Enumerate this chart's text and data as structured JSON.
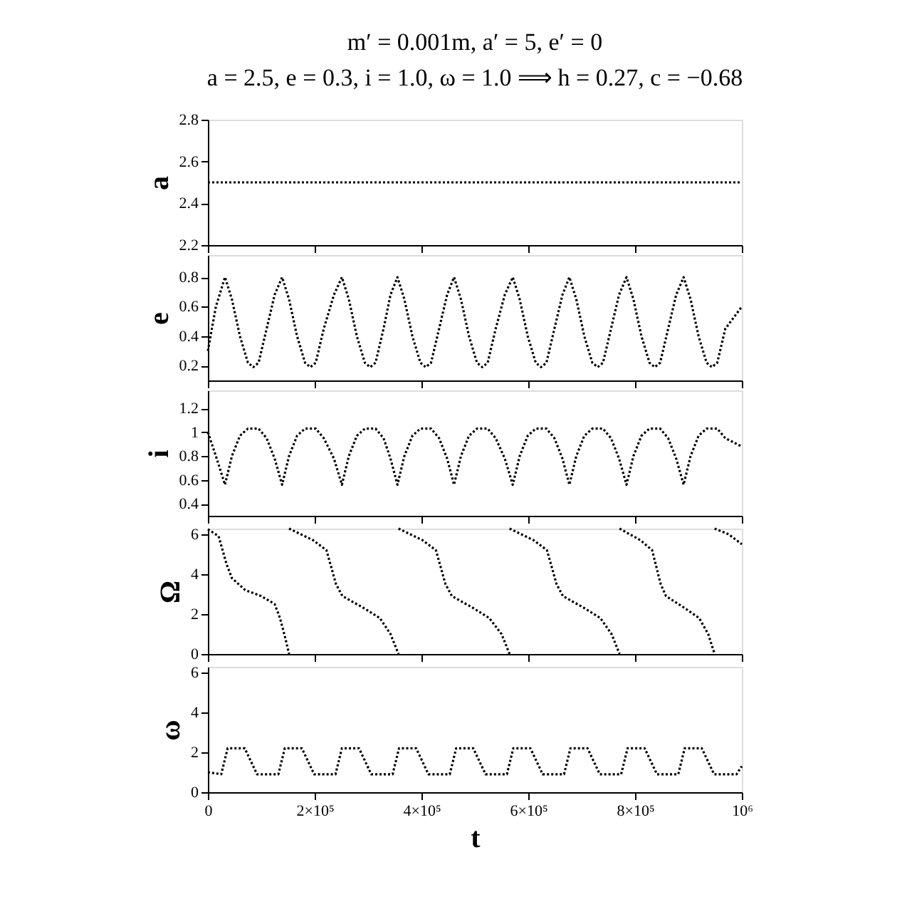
{
  "chart_data": [
    {
      "type": "line",
      "title": "m′ = 0.001m, a′ = 5, e′ = 0",
      "subtitle": "a = 2.5, e = 0.3, i = 1.0, ω = 1.0 ⟹ h = 0.27, c = −0.68",
      "ylabel": "a",
      "tick_labels": "y",
      "xlim": [
        0,
        1000000
      ],
      "xticks": [
        0,
        200000,
        400000,
        600000,
        800000,
        1000000
      ],
      "ylim": [
        2.2,
        2.8
      ],
      "yticks": [
        2.2,
        2.4,
        2.6,
        2.8
      ],
      "x": [
        0,
        1000000
      ],
      "line_style": "dotted",
      "series": [
        {
          "color": "#000000",
          "values": [
            2.5,
            2.5
          ]
        }
      ]
    },
    {
      "type": "line",
      "ylabel": "e",
      "tick_labels": "y",
      "xlim": [
        0,
        1000000
      ],
      "xticks": [
        0,
        200000,
        400000,
        600000,
        800000,
        1000000
      ],
      "ylim": [
        0.1,
        0.95
      ],
      "yticks": [
        0.2,
        0.4,
        0.6,
        0.8
      ],
      "line_style": "dotted",
      "x": [
        0,
        15000,
        32000,
        45000,
        60000,
        75000,
        85000,
        95000,
        110000,
        125000,
        139000,
        152000,
        167000,
        182000,
        192000,
        202000,
        217000,
        236000,
        251000,
        264000,
        279000,
        294000,
        304000,
        314000,
        329000,
        342000,
        355000,
        368000,
        383000,
        398000,
        408000,
        418000,
        433000,
        448000,
        461000,
        474000,
        489000,
        504000,
        514000,
        524000,
        539000,
        556000,
        571000,
        584000,
        599000,
        614000,
        624000,
        634000,
        649000,
        664000,
        677000,
        690000,
        705000,
        720000,
        730000,
        740000,
        755000,
        770000,
        784000,
        797000,
        812000,
        827000,
        837000,
        847000,
        862000,
        877000,
        891000,
        904000,
        919000,
        934000,
        944000,
        954000,
        969000,
        1000000
      ],
      "series": [
        {
          "color": "#000000",
          "values": [
            0.3,
            0.6,
            0.8,
            0.65,
            0.4,
            0.22,
            0.19,
            0.22,
            0.45,
            0.68,
            0.8,
            0.65,
            0.4,
            0.22,
            0.19,
            0.22,
            0.45,
            0.68,
            0.8,
            0.65,
            0.4,
            0.22,
            0.19,
            0.22,
            0.45,
            0.68,
            0.8,
            0.65,
            0.4,
            0.22,
            0.19,
            0.22,
            0.45,
            0.68,
            0.8,
            0.65,
            0.4,
            0.22,
            0.19,
            0.22,
            0.45,
            0.68,
            0.8,
            0.65,
            0.4,
            0.22,
            0.19,
            0.22,
            0.45,
            0.68,
            0.8,
            0.65,
            0.4,
            0.22,
            0.19,
            0.22,
            0.45,
            0.68,
            0.8,
            0.65,
            0.4,
            0.22,
            0.19,
            0.22,
            0.45,
            0.68,
            0.8,
            0.65,
            0.4,
            0.22,
            0.19,
            0.22,
            0.45,
            0.6
          ]
        }
      ]
    },
    {
      "type": "line",
      "ylabel": "i",
      "tick_labels": "y",
      "xlim": [
        0,
        1000000
      ],
      "xticks": [
        0,
        200000,
        400000,
        600000,
        800000,
        1000000
      ],
      "ylim": [
        0.3,
        1.35
      ],
      "yticks": [
        0.4,
        0.6,
        0.8,
        1,
        1.2
      ],
      "line_style": "dotted",
      "x": [
        0,
        15000,
        32000,
        45000,
        60000,
        75000,
        85000,
        95000,
        110000,
        125000,
        139000,
        152000,
        167000,
        182000,
        192000,
        202000,
        217000,
        236000,
        251000,
        264000,
        279000,
        294000,
        304000,
        314000,
        329000,
        342000,
        355000,
        368000,
        383000,
        398000,
        408000,
        418000,
        433000,
        448000,
        461000,
        474000,
        489000,
        504000,
        514000,
        524000,
        539000,
        556000,
        571000,
        584000,
        599000,
        614000,
        624000,
        634000,
        649000,
        664000,
        677000,
        690000,
        705000,
        720000,
        730000,
        740000,
        755000,
        770000,
        784000,
        797000,
        812000,
        827000,
        837000,
        847000,
        862000,
        877000,
        891000,
        904000,
        919000,
        934000,
        944000,
        954000,
        969000,
        1000000
      ],
      "series": [
        {
          "color": "#000000",
          "values": [
            1.0,
            0.8,
            0.56,
            0.8,
            0.97,
            1.03,
            1.03,
            1.03,
            0.95,
            0.78,
            0.56,
            0.8,
            0.97,
            1.03,
            1.03,
            1.03,
            0.95,
            0.78,
            0.56,
            0.8,
            0.97,
            1.03,
            1.03,
            1.03,
            0.95,
            0.78,
            0.56,
            0.8,
            0.97,
            1.03,
            1.03,
            1.03,
            0.95,
            0.78,
            0.56,
            0.8,
            0.97,
            1.03,
            1.03,
            1.03,
            0.95,
            0.78,
            0.56,
            0.8,
            0.97,
            1.03,
            1.03,
            1.03,
            0.95,
            0.78,
            0.56,
            0.8,
            0.97,
            1.03,
            1.03,
            1.03,
            0.95,
            0.78,
            0.56,
            0.8,
            0.97,
            1.03,
            1.03,
            1.03,
            0.95,
            0.78,
            0.56,
            0.8,
            0.97,
            1.03,
            1.03,
            1.03,
            0.95,
            0.88
          ]
        }
      ]
    },
    {
      "type": "line",
      "ylabel": "Ω",
      "tick_labels": "y",
      "xlim": [
        0,
        1000000
      ],
      "xticks": [
        0,
        200000,
        400000,
        600000,
        800000,
        1000000
      ],
      "ylim": [
        0,
        6.28
      ],
      "yticks": [
        0,
        2,
        4,
        6
      ],
      "line_style": "dotted",
      "series": [
        {
          "color": "#000000",
          "x": [
            0,
            20000,
            35000,
            45000,
            70000,
            100000,
            125000,
            135000,
            145000,
            152000
          ],
          "values": [
            6.25,
            5.9,
            4.5,
            3.8,
            3.2,
            2.9,
            2.5,
            1.8,
            0.8,
            0
          ]
        },
        {
          "color": "#000000",
          "x": [
            152000,
            197000,
            222000,
            240000,
            252000,
            292000,
            322000,
            342000,
            357000
          ],
          "values": [
            6.28,
            5.7,
            5.2,
            3.5,
            2.9,
            2.3,
            1.8,
            1.0,
            0
          ]
        },
        {
          "color": "#000000",
          "x": [
            357000,
            402000,
            427000,
            445000,
            457000,
            497000,
            527000,
            550000,
            565000
          ],
          "values": [
            6.28,
            5.7,
            5.2,
            3.5,
            2.9,
            2.3,
            1.8,
            1.0,
            0
          ]
        },
        {
          "color": "#000000",
          "x": [
            565000,
            610000,
            635000,
            653000,
            665000,
            705000,
            735000,
            756000,
            771000
          ],
          "values": [
            6.28,
            5.7,
            5.2,
            3.5,
            2.9,
            2.3,
            1.8,
            1.0,
            0
          ]
        },
        {
          "color": "#000000",
          "x": [
            771000,
            810000,
            832000,
            848000,
            858000,
            893000,
            920000,
            937000,
            949000
          ],
          "values": [
            6.28,
            5.7,
            5.2,
            3.5,
            2.9,
            2.3,
            1.8,
            1.0,
            0
          ]
        },
        {
          "color": "#000000",
          "x": [
            949000,
            975000,
            1000000
          ],
          "values": [
            6.28,
            6.0,
            5.5
          ]
        }
      ]
    },
    {
      "type": "line",
      "ylabel": "ω",
      "xlabel": "t",
      "xlim": [
        0,
        1000000
      ],
      "xticks": [
        {
          "value": 0,
          "label": "0"
        },
        {
          "value": 200000,
          "label": "2×10⁵"
        },
        {
          "value": 400000,
          "label": "4×10⁵"
        },
        {
          "value": 600000,
          "label": "6×10⁵"
        },
        {
          "value": 800000,
          "label": "8×10⁵"
        },
        {
          "value": 1000000,
          "label": "10⁶"
        }
      ],
      "ylim": [
        0,
        6.28
      ],
      "yticks": [
        0,
        2,
        4,
        6
      ],
      "line_style": "dotted",
      "x": [
        0,
        25000,
        37000,
        69000,
        92000,
        132000,
        144000,
        176000,
        199000,
        239000,
        251000,
        283000,
        306000,
        346000,
        358000,
        390000,
        413000,
        453000,
        465000,
        497000,
        520000,
        560000,
        572000,
        604000,
        627000,
        667000,
        679000,
        711000,
        734000,
        774000,
        786000,
        818000,
        841000,
        881000,
        893000,
        925000,
        948000,
        990000,
        1000000
      ],
      "series": [
        {
          "color": "#000000",
          "values": [
            1.0,
            0.9,
            2.2,
            2.2,
            0.9,
            0.9,
            2.2,
            2.2,
            0.9,
            0.9,
            2.2,
            2.2,
            0.9,
            0.9,
            2.2,
            2.2,
            0.9,
            0.9,
            2.2,
            2.2,
            0.9,
            0.9,
            2.2,
            2.2,
            0.9,
            0.9,
            2.2,
            2.2,
            0.9,
            0.9,
            2.2,
            2.2,
            0.9,
            0.9,
            2.2,
            2.2,
            0.9,
            0.9,
            1.3
          ]
        }
      ]
    }
  ]
}
